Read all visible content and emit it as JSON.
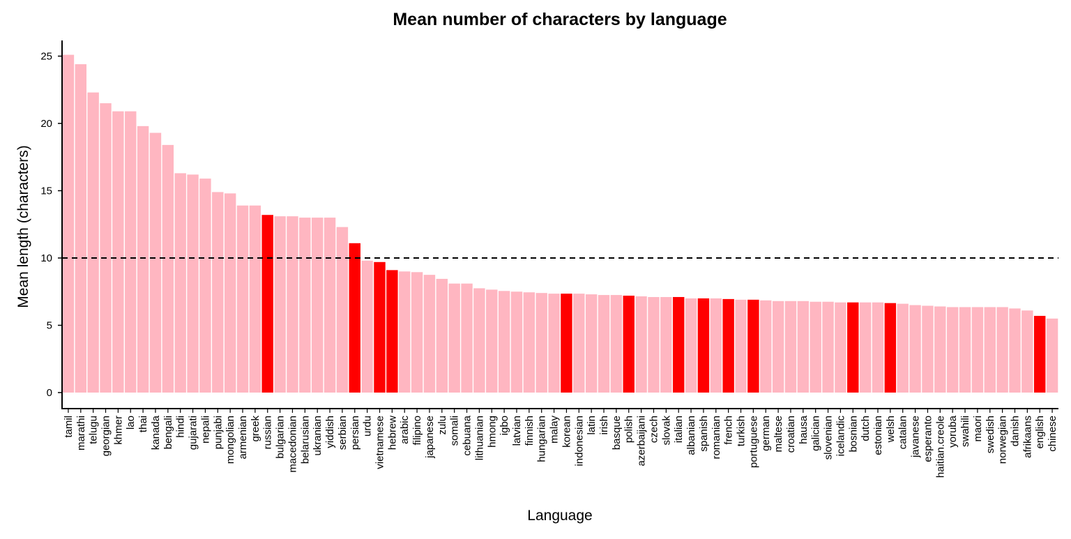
{
  "chart_data": {
    "type": "bar",
    "title": "Mean number of characters by language",
    "xlabel": "Language",
    "ylabel": "Mean length (characters)",
    "ylim": [
      0,
      25.5
    ],
    "yticks": [
      0,
      5,
      10,
      15,
      20,
      25
    ],
    "reference_line": 10,
    "grid": false,
    "colors": {
      "default": "#FFB6C1",
      "highlight": "#FF0000",
      "reference_line": "#000000"
    },
    "categories": [
      "tamil",
      "marathi",
      "telugu",
      "georgian",
      "khmer",
      "lao",
      "thai",
      "kanada",
      "bengali",
      "hindi",
      "gujarati",
      "nepali",
      "punjabi",
      "mongolian",
      "armenian",
      "greek",
      "russian",
      "bulgarian",
      "macedonian",
      "belarusian",
      "ukranian",
      "yiddish",
      "serbian",
      "persian",
      "urdu",
      "vietnamese",
      "hebrew",
      "arabic",
      "filipino",
      "japanese",
      "zulu",
      "somali",
      "cebuana",
      "lithuanian",
      "hmong",
      "igbo",
      "latvian",
      "finnish",
      "hungarian",
      "malay",
      "korean",
      "indonesian",
      "latin",
      "irish",
      "basque",
      "polish",
      "azerbaijani",
      "czech",
      "slovak",
      "italian",
      "albanian",
      "spanish",
      "romanian",
      "french",
      "turkish",
      "portuguese",
      "german",
      "maltese",
      "croatian",
      "hausa",
      "galician",
      "slovenian",
      "icelandic",
      "bosnian",
      "dutch",
      "estonian",
      "welsh",
      "catalan",
      "javanese",
      "esperanto",
      "haitian.creole",
      "yoruba",
      "swahili",
      "maori",
      "swedish",
      "norwegian",
      "danish",
      "afrikaans",
      "english",
      "chinese"
    ],
    "values": [
      25.1,
      24.4,
      22.3,
      21.5,
      20.9,
      20.9,
      19.8,
      19.3,
      18.4,
      16.3,
      16.2,
      15.9,
      14.9,
      14.8,
      13.9,
      13.9,
      13.2,
      13.1,
      13.1,
      13.0,
      13.0,
      13.0,
      12.3,
      11.1,
      9.8,
      9.7,
      9.1,
      9.0,
      8.95,
      8.75,
      8.45,
      8.1,
      8.1,
      7.75,
      7.65,
      7.55,
      7.5,
      7.45,
      7.4,
      7.35,
      7.35,
      7.35,
      7.3,
      7.25,
      7.25,
      7.2,
      7.15,
      7.1,
      7.1,
      7.1,
      7.0,
      7.0,
      7.0,
      6.95,
      6.9,
      6.9,
      6.85,
      6.8,
      6.8,
      6.8,
      6.75,
      6.75,
      6.7,
      6.7,
      6.7,
      6.7,
      6.65,
      6.6,
      6.5,
      6.45,
      6.4,
      6.35,
      6.35,
      6.35,
      6.35,
      6.35,
      6.25,
      6.1,
      5.7,
      5.5
    ],
    "highlighted": [
      "russian",
      "persian",
      "vietnamese",
      "hebrew",
      "korean",
      "polish",
      "italian",
      "spanish",
      "french",
      "portuguese",
      "bosnian",
      "welsh",
      "english"
    ]
  }
}
